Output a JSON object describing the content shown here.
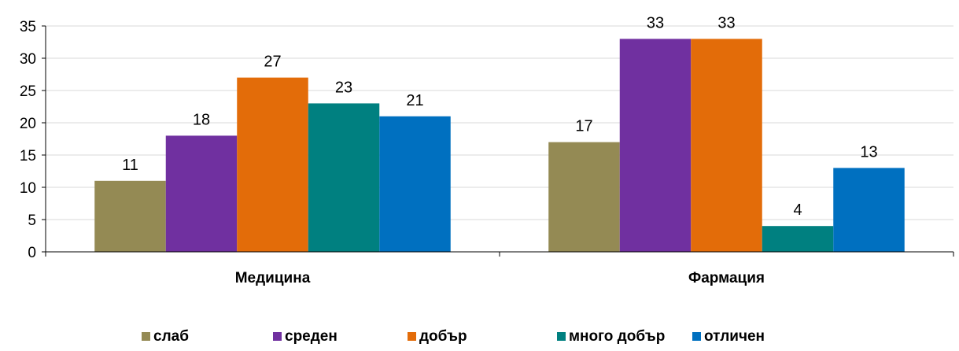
{
  "chart_data": {
    "type": "bar",
    "categories": [
      "Медицина",
      "Фармация"
    ],
    "series": [
      {
        "name": "слаб",
        "values": [
          11,
          17
        ],
        "color": "#948A54"
      },
      {
        "name": "среден",
        "values": [
          18,
          33
        ],
        "color": "#7030A0"
      },
      {
        "name": "добър",
        "values": [
          27,
          33
        ],
        "color": "#E36C09"
      },
      {
        "name": "много добър",
        "values": [
          23,
          4
        ],
        "color": "#008080"
      },
      {
        "name": "отличен",
        "values": [
          21,
          13
        ],
        "color": "#0070C0"
      }
    ],
    "yticks": [
      "0",
      "5",
      "10",
      "15",
      "20",
      "25",
      "30",
      "35"
    ],
    "ylim": [
      0,
      35
    ],
    "grid": true,
    "legend_position": "bottom",
    "data_labels": true
  }
}
